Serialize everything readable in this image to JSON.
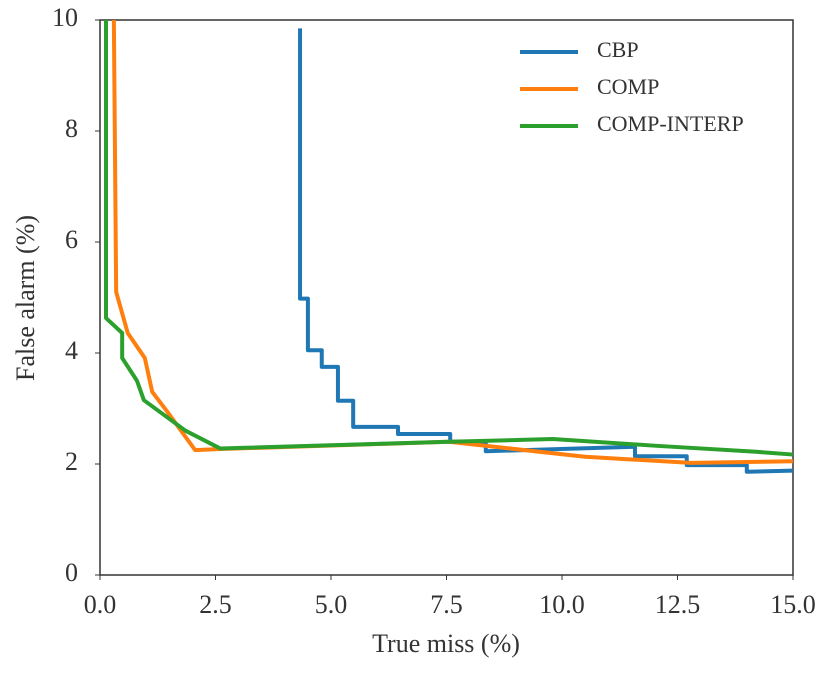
{
  "chart_data": {
    "type": "line",
    "xlabel": "True miss (%)",
    "ylabel": "False alarm (%)",
    "xlim": [
      0,
      15
    ],
    "ylim": [
      0,
      10
    ],
    "xticks": [
      {
        "value": 0,
        "label": "0.0"
      },
      2.5,
      {
        "value": 5,
        "label": "5.0"
      },
      7.5,
      {
        "value": 10,
        "label": "10.0"
      },
      12.5,
      {
        "value": 15,
        "label": "15.0"
      }
    ],
    "yticks": [
      0,
      2,
      4,
      6,
      8,
      10
    ],
    "grid": false,
    "legend": "upper right",
    "series": [
      {
        "name": "CBP",
        "color": "#1f77b4",
        "x": [
          4.33,
          4.33,
          4.5,
          4.5,
          4.8,
          4.8,
          5.15,
          5.15,
          5.48,
          5.48,
          6.45,
          6.45,
          7.58,
          7.58,
          8.35,
          8.35,
          11.58,
          11.58,
          12.7,
          12.7,
          14.0,
          14.0,
          15.0
        ],
        "values": [
          9.85,
          4.98,
          4.98,
          4.05,
          4.05,
          3.75,
          3.75,
          3.14,
          3.14,
          2.67,
          2.67,
          2.54,
          2.54,
          2.4,
          2.4,
          2.23,
          2.31,
          2.14,
          2.14,
          1.98,
          1.98,
          1.86,
          1.88
        ]
      },
      {
        "name": "COMP",
        "color": "#ff7f0e",
        "x": [
          0.3,
          0.35,
          0.6,
          0.97,
          1.13,
          1.45,
          2.06,
          2.6,
          7.55,
          10.5,
          12.8,
          15.0
        ],
        "values": [
          10,
          5.1,
          4.36,
          3.91,
          3.3,
          2.95,
          2.25,
          2.27,
          2.4,
          2.13,
          2.02,
          2.05
        ]
      },
      {
        "name": "COMP-INTERP",
        "color": "#2ca02c",
        "x": [
          0.13,
          0.13,
          0.48,
          0.48,
          0.8,
          0.95,
          1.85,
          2.6,
          7.55,
          9.8,
          12.0,
          14.2,
          15.0
        ],
        "values": [
          10,
          4.63,
          4.36,
          3.91,
          3.5,
          3.15,
          2.6,
          2.28,
          2.4,
          2.45,
          2.33,
          2.22,
          2.17
        ]
      }
    ]
  }
}
